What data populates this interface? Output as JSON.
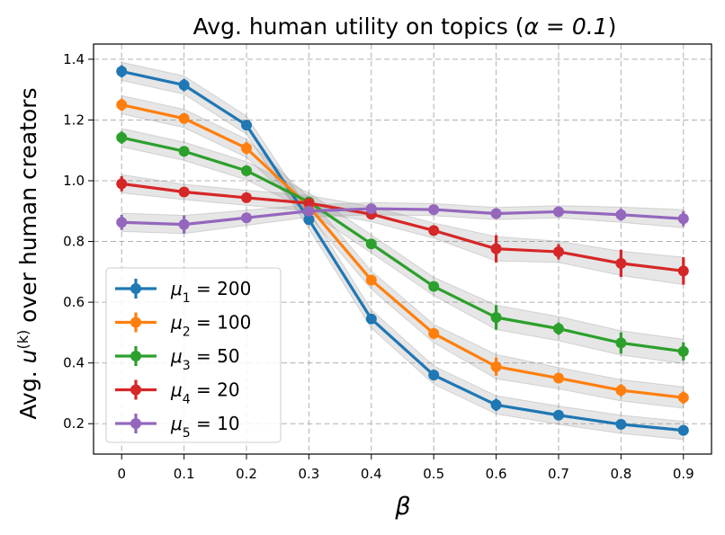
{
  "chart_data": {
    "type": "line",
    "title": "Avg. human utility on topics",
    "title_param": "α = 0.1",
    "xlabel": "β",
    "ylabel_prefix": "Avg. ",
    "ylabel_var": "u",
    "ylabel_sup": "(k)",
    "ylabel_suffix": " over human creators",
    "x": [
      0,
      0.1,
      0.2,
      0.3,
      0.4,
      0.5,
      0.6,
      0.7,
      0.8,
      0.9
    ],
    "x_tick_labels": [
      "0",
      "0.1",
      "0.2",
      "0.3",
      "0.4",
      "0.5",
      "0.6",
      "0.7",
      "0.8",
      "0.9"
    ],
    "xlim": [
      -0.045,
      0.945
    ],
    "ylim": [
      0.1,
      1.45
    ],
    "y_ticks": [
      0.2,
      0.4,
      0.6,
      0.8,
      1.0,
      1.2,
      1.4
    ],
    "y_tick_labels": [
      "0.2",
      "0.4",
      "0.6",
      "0.8",
      "1.0",
      "1.2",
      "1.4"
    ],
    "grid": true,
    "legend_position": "lower-left",
    "series": [
      {
        "name": "μ1 = 200",
        "sym": "μ",
        "sub": "1",
        "val": "= 200",
        "color": "#1f77b4",
        "values": [
          1.36,
          1.315,
          1.183,
          0.872,
          0.545,
          0.36,
          0.262,
          0.228,
          0.198,
          0.178
        ],
        "err": [
          0.02,
          0.02,
          0.015,
          0.015,
          0.015,
          0.012,
          0.02,
          0.012,
          0.012,
          0.012
        ],
        "band": [
          0.03,
          0.03,
          0.03,
          0.03,
          0.03,
          0.03,
          0.03,
          0.03,
          0.03,
          0.03
        ]
      },
      {
        "name": "μ2 = 100",
        "sym": "μ",
        "sub": "2",
        "val": "= 100",
        "color": "#ff7f0e",
        "values": [
          1.25,
          1.205,
          1.107,
          0.915,
          0.673,
          0.497,
          0.388,
          0.35,
          0.31,
          0.286
        ],
        "err": [
          0.02,
          0.015,
          0.02,
          0.015,
          0.015,
          0.015,
          0.03,
          0.012,
          0.02,
          0.02
        ],
        "band": [
          0.03,
          0.03,
          0.03,
          0.03,
          0.03,
          0.03,
          0.04,
          0.035,
          0.035,
          0.035
        ]
      },
      {
        "name": "μ3 = 50",
        "sym": "μ",
        "sub": "3",
        "val": "= 50",
        "color": "#2ca02c",
        "values": [
          1.142,
          1.097,
          1.033,
          0.93,
          0.792,
          0.652,
          0.55,
          0.513,
          0.466,
          0.438
        ],
        "err": [
          0.02,
          0.015,
          0.012,
          0.012,
          0.012,
          0.012,
          0.04,
          0.02,
          0.035,
          0.03
        ],
        "band": [
          0.03,
          0.03,
          0.03,
          0.03,
          0.03,
          0.03,
          0.04,
          0.04,
          0.04,
          0.04
        ]
      },
      {
        "name": "μ4 = 20",
        "sym": "μ",
        "sub": "4",
        "val": "= 20",
        "color": "#d62728",
        "values": [
          0.99,
          0.963,
          0.944,
          0.926,
          0.89,
          0.836,
          0.776,
          0.766,
          0.728,
          0.703
        ],
        "err": [
          0.025,
          0.015,
          0.015,
          0.02,
          0.015,
          0.015,
          0.045,
          0.025,
          0.045,
          0.045
        ],
        "band": [
          0.03,
          0.025,
          0.025,
          0.025,
          0.025,
          0.025,
          0.04,
          0.035,
          0.04,
          0.045
        ]
      },
      {
        "name": "μ5 = 10",
        "sym": "μ",
        "sub": "5",
        "val": "= 10",
        "color": "#9467bd",
        "values": [
          0.863,
          0.856,
          0.878,
          0.9,
          0.908,
          0.905,
          0.892,
          0.898,
          0.888,
          0.875
        ],
        "err": [
          0.025,
          0.03,
          0.012,
          0.012,
          0.012,
          0.012,
          0.015,
          0.012,
          0.02,
          0.025
        ],
        "band": [
          0.03,
          0.03,
          0.025,
          0.02,
          0.02,
          0.02,
          0.02,
          0.02,
          0.025,
          0.03
        ]
      }
    ]
  }
}
